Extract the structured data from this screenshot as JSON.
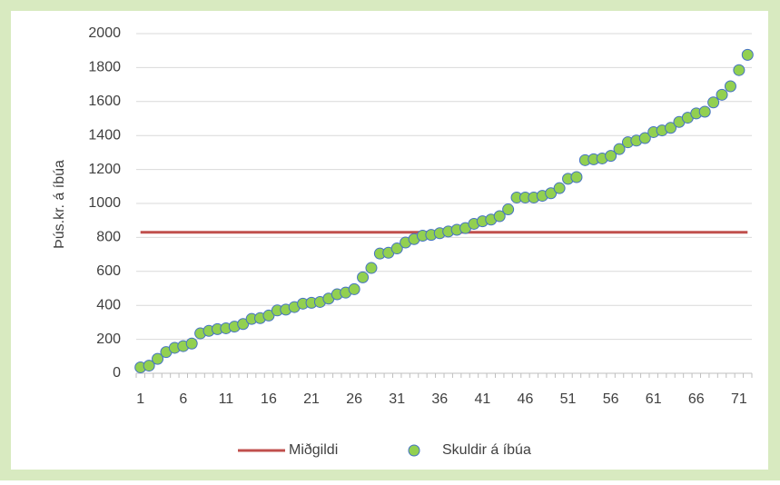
{
  "chart_data": {
    "type": "scatter",
    "y_label": "Þús.kr. á íbúa",
    "categories": [
      1,
      null,
      null,
      null,
      null,
      6,
      null,
      null,
      null,
      null,
      11,
      null,
      null,
      null,
      null,
      16,
      null,
      null,
      null,
      null,
      21,
      null,
      null,
      null,
      null,
      26,
      null,
      null,
      null,
      null,
      31,
      null,
      null,
      null,
      null,
      36,
      null,
      null,
      null,
      null,
      41,
      null,
      null,
      null,
      null,
      46,
      null,
      null,
      null,
      null,
      51,
      null,
      null,
      null,
      null,
      56,
      null,
      null,
      null,
      null,
      61,
      null,
      null,
      null,
      null,
      66,
      null,
      null,
      null,
      null,
      71,
      null
    ],
    "series": [
      {
        "name": "Miðgildi",
        "type": "line",
        "color": "#c0504d",
        "values": [
          830,
          830,
          830,
          830,
          830,
          830,
          830,
          830,
          830,
          830,
          830,
          830,
          830,
          830,
          830,
          830,
          830,
          830,
          830,
          830,
          830,
          830,
          830,
          830,
          830,
          830,
          830,
          830,
          830,
          830,
          830,
          830,
          830,
          830,
          830,
          830,
          830,
          830,
          830,
          830,
          830,
          830,
          830,
          830,
          830,
          830,
          830,
          830,
          830,
          830,
          830,
          830,
          830,
          830,
          830,
          830,
          830,
          830,
          830,
          830,
          830,
          830,
          830,
          830,
          830,
          830,
          830,
          830,
          830,
          830,
          830,
          830
        ]
      },
      {
        "name": "Skuldir á íbúa",
        "type": "scatter",
        "color": "#92d050",
        "edge_color": "#4472c4",
        "values": [
          35,
          45,
          85,
          125,
          150,
          160,
          175,
          235,
          250,
          260,
          265,
          275,
          290,
          320,
          325,
          340,
          370,
          375,
          390,
          410,
          415,
          420,
          440,
          465,
          475,
          495,
          565,
          620,
          705,
          710,
          735,
          770,
          790,
          810,
          815,
          825,
          835,
          845,
          855,
          880,
          895,
          905,
          925,
          965,
          1035,
          1035,
          1035,
          1045,
          1060,
          1090,
          1145,
          1155,
          1255,
          1260,
          1265,
          1280,
          1320,
          1360,
          1370,
          1385,
          1420,
          1430,
          1445,
          1480,
          1505,
          1530,
          1540,
          1595,
          1640,
          1690,
          1785,
          1875
        ]
      }
    ],
    "ylim": [
      0,
      2000
    ],
    "yticks": [
      0,
      200,
      400,
      600,
      800,
      1000,
      1200,
      1400,
      1600,
      1800,
      2000
    ],
    "grid": true,
    "legend": "bottom"
  }
}
